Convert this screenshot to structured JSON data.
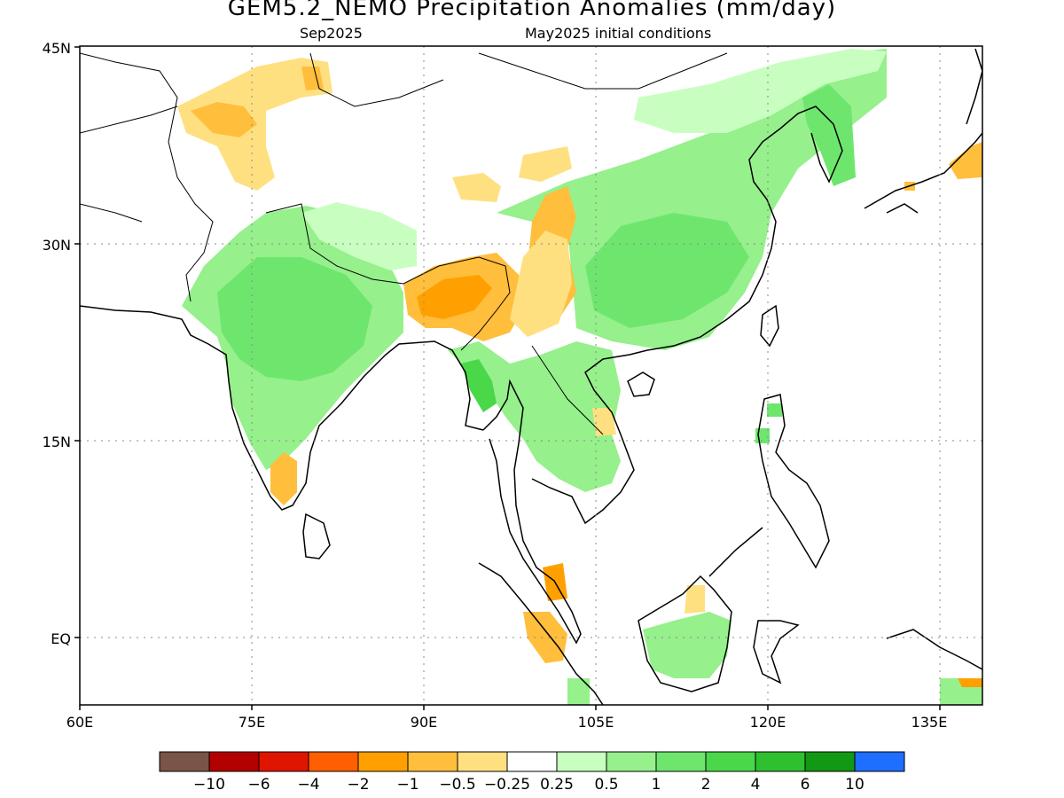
{
  "title": "GEM5.2_NEMO Precipitation Anomalies (mm/day)",
  "subtitle_left": "Sep2025",
  "subtitle_right": "May2025 initial conditions",
  "lat_labels": [
    "45N",
    "30N",
    "15N",
    "EQ"
  ],
  "lon_labels": [
    "60E",
    "75E",
    "90E",
    "105E",
    "120E",
    "135E"
  ],
  "colorbar": {
    "colors": [
      "#7a5446",
      "#b30000",
      "#e01500",
      "#ff5f00",
      "#ffa000",
      "#ffbe3c",
      "#ffe080",
      "#ffffff",
      "#c8ffc0",
      "#96f08c",
      "#6ee66e",
      "#4ad84a",
      "#2ec02e",
      "#129812",
      "#1e6eff"
    ],
    "labels": [
      "−10",
      "−6",
      "−4",
      "−2",
      "−1",
      "−0.5",
      "−0.25",
      "0.25",
      "0.5",
      "1",
      "2",
      "4",
      "6",
      "10"
    ]
  }
}
